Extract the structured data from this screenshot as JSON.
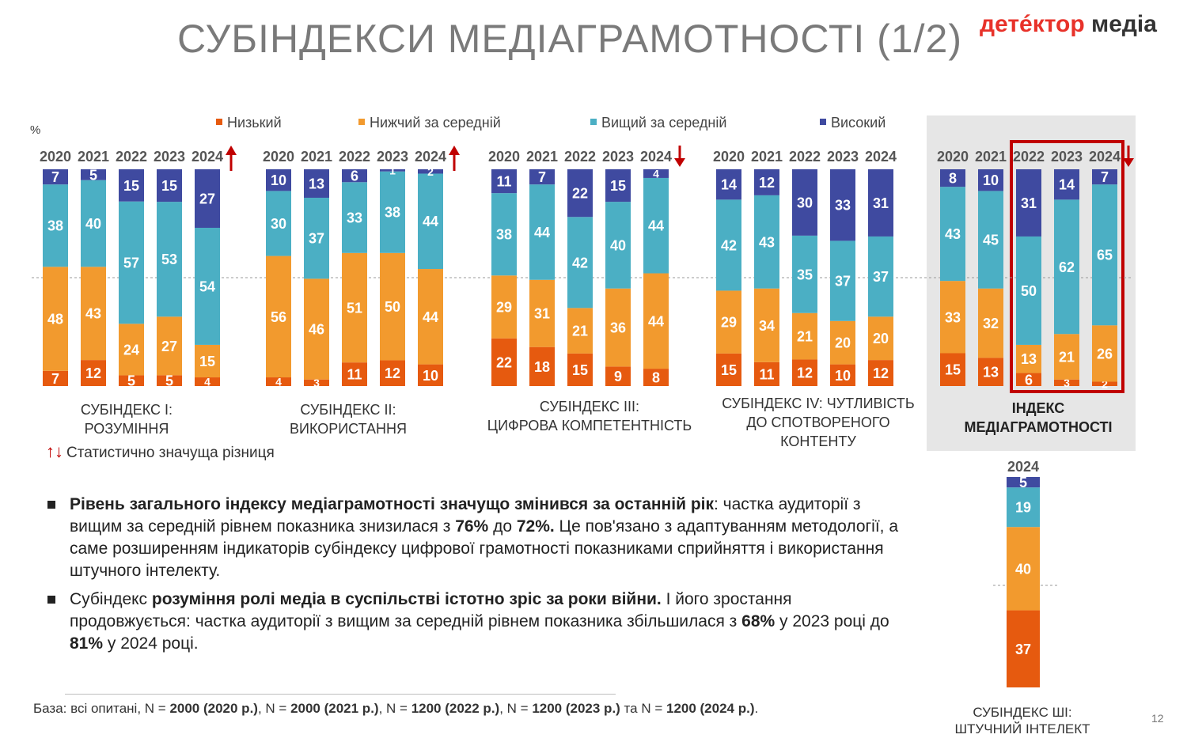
{
  "page": {
    "title": "СУБІНДЕКСИ МЕДІАГРАМОТНОСТІ (1/2)",
    "logo_part1": "детéктор",
    "logo_part2": "медіа",
    "pct_sign": "%",
    "page_number": "12"
  },
  "legend": [
    {
      "label": "Низький",
      "color": "#e65a0f"
    },
    {
      "label": "Нижчий за середній",
      "color": "#f29a2e"
    },
    {
      "label": "Вищий за середній",
      "color": "#4bafc4"
    },
    {
      "label": "Високий",
      "color": "#3f4aa0"
    }
  ],
  "colors": {
    "low": "#e65a0f",
    "below": "#f29a2e",
    "above": "#4bafc4",
    "high": "#3f4aa0",
    "arrow": "#c00000"
  },
  "chart_data": {
    "type": "bar",
    "stacked": true,
    "series_order": [
      "Низький",
      "Нижчий за середній",
      "Вищий за середній",
      "Високий"
    ],
    "groups": [
      {
        "label_lines": [
          "СУБІНДЕКС І:",
          "РОЗУМІННЯ"
        ],
        "arrow": "up",
        "years": [
          "2020",
          "2021",
          "2022",
          "2023",
          "2024"
        ],
        "values": [
          [
            7,
            48,
            38,
            7
          ],
          [
            12,
            43,
            40,
            5
          ],
          [
            5,
            24,
            57,
            15
          ],
          [
            5,
            27,
            53,
            15
          ],
          [
            4,
            15,
            54,
            27
          ]
        ]
      },
      {
        "label_lines": [
          "СУБІНДЕКС ІІ:",
          "ВИКОРИСТАННЯ"
        ],
        "arrow": "up",
        "years": [
          "2020",
          "2021",
          "2022",
          "2023",
          "2024"
        ],
        "values": [
          [
            4,
            56,
            30,
            10
          ],
          [
            3,
            46,
            37,
            13
          ],
          [
            11,
            51,
            33,
            6
          ],
          [
            12,
            50,
            38,
            1
          ],
          [
            10,
            44,
            44,
            2
          ]
        ]
      },
      {
        "label_lines": [
          "СУБІНДЕКС ІІІ:",
          "ЦИФРОВА КОМПЕТЕНТНІСТЬ"
        ],
        "arrow": "down",
        "years": [
          "2020",
          "2021",
          "2022",
          "2023",
          "2024"
        ],
        "values": [
          [
            22,
            29,
            38,
            11
          ],
          [
            18,
            31,
            44,
            7
          ],
          [
            15,
            21,
            42,
            22
          ],
          [
            9,
            36,
            40,
            15
          ],
          [
            8,
            44,
            44,
            4
          ]
        ]
      },
      {
        "label_lines": [
          "СУБІНДЕКС IV: ЧУТЛИВІСТЬ",
          "ДО СПОТВОРЕНОГО",
          "КОНТЕНТУ"
        ],
        "arrow": "",
        "years": [
          "2020",
          "2021",
          "2022",
          "2023",
          "2024"
        ],
        "values": [
          [
            15,
            29,
            42,
            14
          ],
          [
            11,
            34,
            43,
            12
          ],
          [
            12,
            21,
            35,
            30
          ],
          [
            10,
            20,
            37,
            33
          ],
          [
            12,
            20,
            37,
            31
          ]
        ]
      },
      {
        "label_lines": [
          "ІНДЕКС",
          "МЕДІАГРАМОТНОСТІ"
        ],
        "arrow": "down",
        "years": [
          "2020",
          "2021",
          "2022",
          "2023",
          "2024"
        ],
        "values": [
          [
            15,
            33,
            43,
            8
          ],
          [
            13,
            32,
            45,
            10
          ],
          [
            6,
            13,
            50,
            31
          ],
          [
            3,
            21,
            62,
            14
          ],
          [
            2,
            26,
            65,
            7
          ]
        ]
      }
    ],
    "ai": {
      "label_lines": [
        "СУБІНДЕКС ШІ:",
        "ШТУЧНИЙ ІНТЕЛЕКТ"
      ],
      "year": "2024",
      "values": [
        37,
        40,
        19,
        5
      ]
    }
  },
  "stat_note": "Статистично значуща різниця",
  "bullets": [
    {
      "parts": [
        {
          "t": "Рівень загального індексу медіаграмотності значущо змінився за останній рік",
          "b": true
        },
        {
          "t": ": частка аудиторії з вищим за середній рівнем показника знизилася з ",
          "b": false
        },
        {
          "t": "76%",
          "b": true
        },
        {
          "t": " до ",
          "b": false
        },
        {
          "t": "72%.",
          "b": true
        },
        {
          "t": " Це пов'язано з адаптуванням методології, а саме розширенням індикаторів субіндексу цифрової грамотності показниками сприйняття і використання штучного інтелекту.",
          "b": false
        }
      ]
    },
    {
      "parts": [
        {
          "t": "Субіндекс ",
          "b": false
        },
        {
          "t": "розуміння ролі медіа в суспільстві істотно зріс за роки війни.",
          "b": true
        },
        {
          "t": " І його зростання продовжується:  частка аудиторії з вищим за середній рівнем показника збільшилася з  ",
          "b": false
        },
        {
          "t": "68%",
          "b": true
        },
        {
          "t": " у 2023 році  до ",
          "b": false
        },
        {
          "t": "81%",
          "b": true
        },
        {
          "t": " у 2024 році.",
          "b": false
        }
      ]
    }
  ],
  "base_note": [
    {
      "t": "База: всі опитані, N = ",
      "b": false
    },
    {
      "t": "2000 (2020 р.)",
      "b": true
    },
    {
      "t": ", N = ",
      "b": false
    },
    {
      "t": "2000 (2021 р.)",
      "b": true
    },
    {
      "t": ", N = ",
      "b": false
    },
    {
      "t": "1200 (2022 р.)",
      "b": true
    },
    {
      "t": ", N = ",
      "b": false
    },
    {
      "t": "1200 (2023 р.)",
      "b": true
    },
    {
      "t": " та N = ",
      "b": false
    },
    {
      "t": "1200 (2024 р.)",
      "b": true
    },
    {
      "t": ".",
      "b": false
    }
  ]
}
